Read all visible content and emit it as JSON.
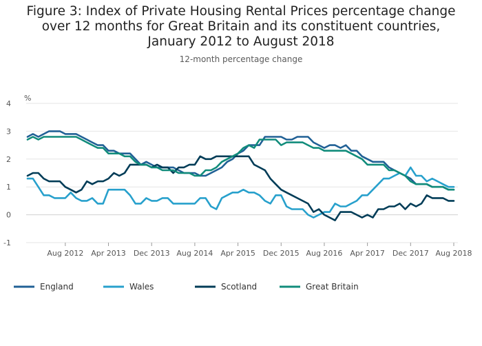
{
  "chart_data": {
    "type": "line",
    "title": "Figure 3: Index of Private Housing Rental Prices percentage change over 12 months for Great Britain and its constituent countries, January 2012 to August 2018",
    "subtitle": "12-month percentage change",
    "ylabel": "%",
    "ylim": [
      -1,
      4
    ],
    "yticks": [
      -1,
      0,
      1,
      2,
      3,
      4
    ],
    "x_start": "2012-01",
    "x_end": "2018-08",
    "xticks": [
      {
        "date": "2012-08",
        "label": "Aug 2012"
      },
      {
        "date": "2013-04",
        "label": "Apr 2013"
      },
      {
        "date": "2013-12",
        "label": "Dec 2013"
      },
      {
        "date": "2014-08",
        "label": "Aug 2014"
      },
      {
        "date": "2015-04",
        "label": "Apr 2015"
      },
      {
        "date": "2015-12",
        "label": "Dec 2015"
      },
      {
        "date": "2016-08",
        "label": "Aug 2016"
      },
      {
        "date": "2017-04",
        "label": "Apr 2017"
      },
      {
        "date": "2017-12",
        "label": "Dec 2017"
      },
      {
        "date": "2018-08",
        "label": "Aug 2018"
      }
    ],
    "grid": true,
    "legend_position": "bottom",
    "series": [
      {
        "name": "England",
        "color": "#206095",
        "values": [
          2.8,
          2.9,
          2.8,
          2.9,
          3.0,
          3.0,
          3.0,
          2.9,
          2.9,
          2.9,
          2.8,
          2.7,
          2.6,
          2.5,
          2.5,
          2.3,
          2.3,
          2.2,
          2.2,
          2.2,
          2.0,
          1.8,
          1.9,
          1.8,
          1.7,
          1.7,
          1.7,
          1.7,
          1.6,
          1.5,
          1.5,
          1.5,
          1.4,
          1.4,
          1.5,
          1.6,
          1.7,
          1.9,
          2.0,
          2.2,
          2.3,
          2.5,
          2.5,
          2.5,
          2.8,
          2.8,
          2.8,
          2.8,
          2.7,
          2.7,
          2.8,
          2.8,
          2.8,
          2.6,
          2.5,
          2.4,
          2.5,
          2.5,
          2.4,
          2.5,
          2.3,
          2.3,
          2.1,
          2.0,
          1.9,
          1.9,
          1.9,
          1.7,
          1.6,
          1.5,
          1.4,
          1.3,
          1.1,
          1.1,
          1.1,
          1.0,
          1.0,
          1.0,
          0.9,
          0.9
        ]
      },
      {
        "name": "Wales",
        "color": "#27a0cc",
        "values": [
          1.3,
          1.3,
          1.0,
          0.7,
          0.7,
          0.6,
          0.6,
          0.6,
          0.8,
          0.6,
          0.5,
          0.5,
          0.6,
          0.4,
          0.4,
          0.9,
          0.9,
          0.9,
          0.9,
          0.7,
          0.4,
          0.4,
          0.6,
          0.5,
          0.5,
          0.6,
          0.6,
          0.4,
          0.4,
          0.4,
          0.4,
          0.4,
          0.6,
          0.6,
          0.3,
          0.2,
          0.6,
          0.7,
          0.8,
          0.8,
          0.9,
          0.8,
          0.8,
          0.7,
          0.5,
          0.4,
          0.7,
          0.7,
          0.3,
          0.2,
          0.2,
          0.2,
          0.0,
          -0.1,
          0.0,
          0.1,
          0.1,
          0.4,
          0.3,
          0.3,
          0.4,
          0.5,
          0.7,
          0.7,
          0.9,
          1.1,
          1.3,
          1.3,
          1.4,
          1.5,
          1.4,
          1.7,
          1.4,
          1.4,
          1.2,
          1.3,
          1.2,
          1.1,
          1.0,
          1.0
        ]
      },
      {
        "name": "Scotland",
        "color": "#003c57",
        "values": [
          1.4,
          1.5,
          1.5,
          1.3,
          1.2,
          1.2,
          1.2,
          1.0,
          0.9,
          0.8,
          0.9,
          1.2,
          1.1,
          1.2,
          1.2,
          1.3,
          1.5,
          1.4,
          1.5,
          1.8,
          1.8,
          1.8,
          1.8,
          1.7,
          1.8,
          1.7,
          1.7,
          1.5,
          1.7,
          1.7,
          1.8,
          1.8,
          2.1,
          2.0,
          2.0,
          2.1,
          2.1,
          2.1,
          2.1,
          2.1,
          2.1,
          2.1,
          1.8,
          1.7,
          1.6,
          1.3,
          1.1,
          0.9,
          0.8,
          0.7,
          0.6,
          0.5,
          0.4,
          0.1,
          0.2,
          0.0,
          -0.1,
          -0.2,
          0.1,
          0.1,
          0.1,
          0.0,
          -0.1,
          0.0,
          -0.1,
          0.2,
          0.2,
          0.3,
          0.3,
          0.4,
          0.2,
          0.4,
          0.3,
          0.4,
          0.7,
          0.6,
          0.6,
          0.6,
          0.5,
          0.5
        ]
      },
      {
        "name": "Great Britain",
        "color": "#118c7b",
        "values": [
          2.7,
          2.8,
          2.7,
          2.8,
          2.8,
          2.8,
          2.8,
          2.8,
          2.8,
          2.8,
          2.7,
          2.6,
          2.5,
          2.4,
          2.4,
          2.2,
          2.2,
          2.2,
          2.1,
          2.1,
          1.9,
          1.8,
          1.8,
          1.7,
          1.7,
          1.6,
          1.6,
          1.6,
          1.5,
          1.5,
          1.5,
          1.4,
          1.4,
          1.6,
          1.6,
          1.7,
          1.9,
          2.0,
          2.1,
          2.2,
          2.4,
          2.5,
          2.4,
          2.7,
          2.7,
          2.7,
          2.7,
          2.5,
          2.6,
          2.6,
          2.6,
          2.6,
          2.5,
          2.4,
          2.4,
          2.3,
          2.3,
          2.3,
          2.3,
          2.3,
          2.2,
          2.1,
          2.0,
          1.8,
          1.8,
          1.8,
          1.8,
          1.6,
          1.6,
          1.5,
          1.4,
          1.2,
          1.1,
          1.1,
          1.1,
          1.0,
          1.0,
          1.0,
          0.9,
          0.9
        ]
      }
    ]
  }
}
